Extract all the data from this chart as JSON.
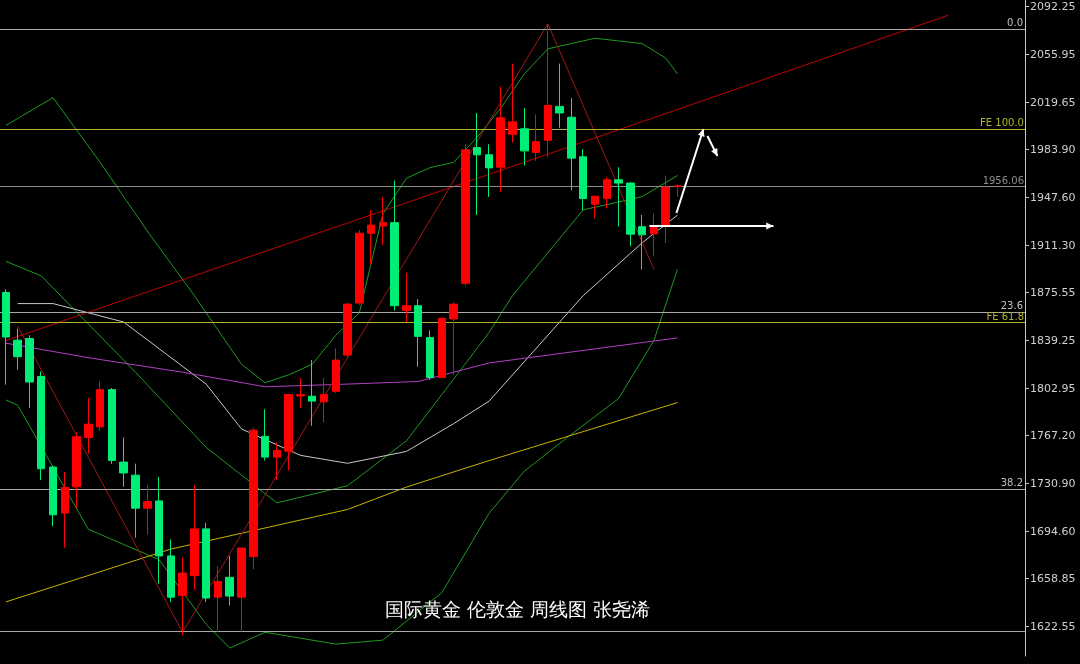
{
  "chart_data": {
    "type": "candlestick",
    "title": "国际黄金 伦敦金 周线图 张尧浠",
    "categories": [
      null,
      null,
      null,
      null,
      null,
      null,
      null,
      null,
      null,
      null,
      null,
      null,
      null,
      null,
      null,
      null,
      null,
      null,
      null,
      null,
      null,
      null,
      null,
      null,
      null,
      null,
      null,
      null,
      null,
      null,
      null,
      null,
      null,
      null,
      null,
      null,
      null,
      null,
      null,
      null,
      null,
      null,
      null,
      null,
      null,
      null,
      null,
      null,
      null,
      null,
      null,
      null,
      null,
      null,
      null,
      null,
      null,
      null,
      null,
      null,
      null,
      null,
      null,
      null,
      null,
      null,
      null,
      null,
      null,
      null,
      null,
      null,
      null,
      null,
      null,
      null,
      null,
      null,
      null,
      null,
      null,
      null,
      null,
      null,
      null,
      null,
      null
    ],
    "ohlc": [
      [
        1875.4,
        1877.9,
        1805.6,
        1841.7
      ],
      [
        1839.3,
        1848,
        1816.8,
        1826.8
      ],
      [
        1840.5,
        1843,
        1788,
        1807.6
      ],
      [
        1811.8,
        1815.6,
        1733.2,
        1741.9
      ],
      [
        1743.2,
        1744.4,
        1698.3,
        1707
      ],
      [
        1708.3,
        1739.4,
        1682.1,
        1727.7
      ],
      [
        1728.2,
        1769.4,
        1712,
        1766.1
      ],
      [
        1765.6,
        1795.6,
        1753.2,
        1775.6
      ],
      [
        1773.6,
        1808.1,
        1770.6,
        1801.8
      ],
      [
        1801.8,
        1803,
        1745.7,
        1748.2
      ],
      [
        1746.9,
        1765.6,
        1728.2,
        1738.7
      ],
      [
        1737,
        1745.7,
        1689.6,
        1712
      ],
      [
        1712,
        1729.5,
        1692,
        1717
      ],
      [
        1717.5,
        1735.7,
        1654.6,
        1675.8
      ],
      [
        1675.8,
        1688.3,
        1640.9,
        1644.6
      ],
      [
        1645.9,
        1674.6,
        1615.9,
        1662.8
      ],
      [
        1660.9,
        1729.5,
        1650,
        1696.3
      ],
      [
        1696.3,
        1700.8,
        1640.9,
        1643.9
      ],
      [
        1644.6,
        1668.3,
        1618.4,
        1656.4
      ],
      [
        1659.6,
        1675.8,
        1638.4,
        1645.4
      ],
      [
        1644.6,
        1682,
        1618.4,
        1681.8
      ],
      [
        1675.3,
        1773.1,
        1665.8,
        1771.1
      ],
      [
        1766.4,
        1786.9,
        1748.2,
        1750.7
      ],
      [
        1750.7,
        1761.9,
        1733.2,
        1755.7
      ],
      [
        1755.2,
        1798.1,
        1740.7,
        1798.1
      ],
      [
        1797,
        1810.6,
        1788.1,
        1798
      ],
      [
        1796.8,
        1824.3,
        1774.4,
        1793.1
      ],
      [
        1792.6,
        1810.6,
        1777,
        1798.1
      ],
      [
        1800.5,
        1833,
        1799.3,
        1824.2
      ],
      [
        1828,
        1867.9,
        1826.7,
        1866.6
      ],
      [
        1867.4,
        1922.8,
        1866,
        1920.3
      ],
      [
        1920.3,
        1937.7,
        1896.6,
        1926.5
      ],
      [
        1925.8,
        1947.7,
        1911.5,
        1928.3
      ],
      [
        1928.3,
        1960.2,
        1861.7,
        1865.4
      ],
      [
        1861.7,
        1890.3,
        1852.9,
        1865.4
      ],
      [
        1865.4,
        1870.4,
        1819.2,
        1842.2
      ],
      [
        1841.2,
        1846.7,
        1809.3,
        1811
      ],
      [
        1811,
        1855.9,
        1810.5,
        1855.9
      ],
      [
        1855.4,
        1867.9,
        1812.9,
        1866.6
      ],
      [
        1882.4,
        1987.7,
        1880.5,
        1983.5
      ],
      [
        1985.2,
        2011.4,
        1934.1,
        1979.7
      ],
      [
        1979.7,
        1987.7,
        1947.8,
        1969.8
      ],
      [
        1970.3,
        2031.4,
        1951.5,
        2007.7
      ],
      [
        1995.2,
        2048.8,
        1989,
        2004.7
      ],
      [
        1999.4,
        2015.2,
        1971.5,
        1982.7
      ],
      [
        1981.5,
        2010.2,
        1975.2,
        1989.7
      ],
      [
        1990.7,
        2078.8,
        1977.7,
        2017.2
      ],
      [
        2016.4,
        2048.8,
        2000.2,
        2011.4
      ],
      [
        2008.2,
        2022.6,
        1952.8,
        1977.2
      ],
      [
        1978.2,
        1984,
        1937.8,
        1946.6
      ],
      [
        1942.3,
        1948.8,
        1931.6,
        1948.3
      ],
      [
        1946.6,
        1962.8,
        1939.1,
        1960.8
      ],
      [
        1960.8,
        1970.3,
        1925.3,
        1958.3
      ],
      [
        1958.3,
        1959,
        1910.4,
        1919.6
      ],
      [
        1925.3,
        1934.1,
        1892.9,
        1919.1
      ],
      [
        1919.8,
        1935.3,
        1902.9,
        1925.3
      ],
      [
        1925.8,
        1964,
        1912.9,
        1955.3
      ],
      [
        1956,
        1957.3,
        1947.8,
        1956.06
      ],
      null,
      null,
      null,
      null,
      null,
      null,
      null,
      null,
      null,
      null,
      null,
      null,
      null,
      null,
      null,
      null,
      null,
      null,
      null,
      null,
      null,
      null,
      null,
      null,
      null,
      null,
      null,
      null,
      null
    ],
    "colors": [
      "#00ee76",
      "#00ee76",
      "#00ee76",
      "#00ee76",
      "#00ee76",
      "#ff0000",
      "#ff0000",
      "#ff0000",
      "#ff0000",
      "#00ee76",
      "#00ee76",
      "#00ee76",
      "#ff0000",
      "#00ee76",
      "#00ee76",
      "#ff0000",
      "#ff0000",
      "#00ee76",
      "#ff0000",
      "#00ee76",
      "#ff0000",
      "#ff0000",
      "#00ee76",
      "#ff0000",
      "#ff0000",
      "#ff0000",
      "#00ee76",
      "#ff0000",
      "#ff0000",
      "#ff0000",
      "#ff0000",
      "#ff0000",
      "#ff0000",
      "#00ee76",
      "#ff0000",
      "#00ee76",
      "#00ee76",
      "#ff0000",
      "#ff0000",
      "#ff0000",
      "#00ee76",
      "#00ee76",
      "#ff0000",
      "#ff0000",
      "#00ee76",
      "#ff0000",
      "#ff0000",
      "#00ee76",
      "#00ee76",
      "#00ee76",
      "#ff0000",
      "#ff0000",
      "#00ee76",
      "#00ee76",
      "#00ee76",
      "#ff0000",
      "#ff0000",
      "#ff0000",
      null,
      null,
      null,
      null,
      null,
      null,
      null,
      null,
      null,
      null,
      null,
      null,
      null,
      null,
      null,
      null,
      null,
      null,
      null,
      null,
      null,
      null,
      null,
      null,
      null,
      null,
      null,
      null,
      null
    ],
    "series": [
      {
        "type": "line",
        "color": "#1f9a1f",
        "values": [
          2002,
          null,
          null,
          null,
          2023,
          null,
          null,
          null,
          1974,
          null,
          null,
          null,
          1922,
          null,
          null,
          null,
          1873,
          null,
          null,
          null,
          1821,
          null,
          1807,
          null,
          1813,
          null,
          1821,
          null,
          1843,
          null,
          1860,
          null,
          1935,
          null,
          1962,
          null,
          1970,
          null,
          1974,
          null,
          1993,
          null,
          2015,
          null,
          2041,
          null,
          2060,
          null,
          2064,
          null,
          2068,
          null,
          2066,
          null,
          2064,
          null,
          2053,
          2041,
          null,
          null,
          null,
          null,
          null,
          null,
          null,
          null,
          null,
          null,
          null,
          null,
          null,
          null,
          null,
          null,
          null,
          null,
          null,
          null,
          null,
          null,
          null,
          null,
          null,
          null,
          null,
          null,
          null
        ]
      },
      {
        "type": "line",
        "color": "#1f9a1f",
        "values": [
          1899,
          null,
          null,
          1888,
          null,
          null,
          null,
          null,
          null,
          null,
          null,
          1815,
          null,
          null,
          null,
          null,
          null,
          1758,
          null,
          null,
          null,
          null,
          null,
          1716,
          null,
          null,
          null,
          null,
          null,
          1729,
          null,
          null,
          null,
          null,
          1763,
          null,
          null,
          1798,
          null,
          null,
          null,
          1845,
          null,
          1873,
          null,
          null,
          null,
          null,
          null,
          1938,
          null,
          null,
          null,
          null,
          1948,
          null,
          null,
          1964,
          null,
          null,
          null,
          null,
          null,
          null,
          null,
          null,
          null,
          null,
          null,
          null,
          null,
          null,
          null,
          null,
          null,
          null,
          null,
          null,
          null,
          null,
          null,
          null,
          null,
          null,
          null,
          null,
          null
        ]
      },
      {
        "type": "line",
        "color": "#1f9a1f",
        "values": [
          1794,
          1790,
          null,
          null,
          null,
          null,
          null,
          1696,
          null,
          null,
          null,
          null,
          null,
          1673,
          null,
          null,
          null,
          1624,
          null,
          1606,
          null,
          null,
          1618,
          null,
          null,
          null,
          null,
          null,
          1609,
          null,
          null,
          null,
          1612,
          null,
          null,
          null,
          null,
          1648,
          null,
          null,
          null,
          1708,
          null,
          null,
          1740,
          null,
          null,
          null,
          1768,
          null,
          null,
          null,
          1795,
          null,
          null,
          1839,
          null,
          1893,
          null,
          null,
          null,
          null,
          null,
          null,
          null,
          null,
          null,
          null,
          null,
          null,
          null,
          null,
          null,
          null,
          null,
          null,
          null,
          null,
          null,
          null,
          null,
          null,
          null,
          null,
          null,
          null,
          null
        ]
      },
      {
        "type": "line",
        "color": "#c8c8c8",
        "values": [
          null,
          1867,
          null,
          null,
          1867,
          null,
          null,
          null,
          null,
          null,
          1853,
          null,
          null,
          null,
          null,
          null,
          null,
          1806,
          null,
          null,
          1772,
          null,
          null,
          null,
          null,
          1752,
          null,
          null,
          null,
          1746,
          null,
          null,
          null,
          null,
          1755,
          null,
          null,
          null,
          1776,
          null,
          null,
          1793,
          null,
          null,
          null,
          null,
          null,
          null,
          null,
          1873,
          null,
          null,
          null,
          null,
          1913,
          null,
          null,
          1934,
          null,
          null,
          null,
          null,
          null,
          null,
          null,
          null,
          null,
          null,
          null,
          null,
          null,
          null,
          null,
          null,
          null,
          null,
          null,
          null,
          null,
          null,
          null,
          null,
          null,
          null,
          null,
          null,
          null
        ]
      },
      {
        "type": "line",
        "color": "#b040c0",
        "values": [
          1837,
          null,
          null,
          null,
          null,
          null,
          null,
          1826,
          null,
          null,
          null,
          null,
          null,
          null,
          null,
          1815,
          null,
          null,
          null,
          null,
          null,
          null,
          1804,
          null,
          null,
          null,
          null,
          null,
          null,
          1806,
          null,
          null,
          null,
          null,
          null,
          1808,
          null,
          null,
          null,
          null,
          null,
          1822,
          null,
          null,
          null,
          null,
          null,
          null,
          null,
          null,
          null,
          null,
          null,
          null,
          null,
          null,
          null,
          1841,
          null,
          null,
          null,
          null,
          null,
          null,
          null,
          null,
          null,
          null,
          null,
          null,
          null,
          null,
          null,
          null,
          null,
          null,
          null,
          null,
          null,
          null,
          null,
          null,
          null,
          null,
          null,
          null,
          null
        ]
      },
      {
        "type": "line",
        "color": "#c8b400",
        "values": [
          1641,
          null,
          null,
          null,
          null,
          null,
          null,
          null,
          null,
          null,
          null,
          null,
          null,
          null,
          1681,
          null,
          null,
          null,
          null,
          null,
          null,
          null,
          null,
          null,
          null,
          null,
          null,
          null,
          null,
          1711,
          null,
          null,
          null,
          null,
          1728,
          null,
          null,
          null,
          null,
          null,
          null,
          1748,
          null,
          null,
          null,
          null,
          null,
          null,
          null,
          null,
          null,
          null,
          null,
          null,
          null,
          null,
          null,
          1792,
          null,
          null,
          null,
          null,
          null,
          null,
          null,
          null,
          null,
          null,
          null,
          null,
          null,
          null,
          null,
          null,
          null,
          null,
          null,
          null,
          null,
          null,
          null,
          null,
          null,
          null,
          null,
          null,
          null
        ]
      },
      {
        "type": "line",
        "color": "#c00000",
        "values": [
          1839,
          null,
          null,
          null,
          null,
          null,
          null,
          null,
          null,
          null,
          null,
          null,
          null,
          null,
          null,
          null,
          null,
          null,
          null,
          null,
          null,
          null,
          null,
          null,
          null,
          null,
          null,
          null,
          null,
          null,
          null,
          null,
          null,
          null,
          null,
          null,
          null,
          null,
          null,
          null,
          null,
          null,
          null,
          null,
          null,
          null,
          null,
          null,
          null,
          null,
          null,
          null,
          null,
          null,
          null,
          null,
          null,
          2014,
          null,
          null,
          null,
          null,
          null,
          null,
          null,
          null,
          null,
          null,
          null,
          null,
          null,
          null,
          null,
          null,
          null,
          null,
          null,
          null,
          null,
          null,
          2085.5,
          null,
          null,
          null,
          null,
          null,
          null
        ]
      },
      {
        "type": "line",
        "color": "#a01818",
        "values": [
          null,
          1850,
          null,
          null,
          null,
          null,
          null,
          null,
          null,
          null,
          null,
          null,
          null,
          null,
          null,
          1618,
          null,
          null,
          null,
          null,
          null,
          null,
          null,
          null,
          null,
          null,
          null,
          null,
          null,
          null,
          null,
          null,
          null,
          null,
          null,
          null,
          null,
          null,
          null,
          null,
          null,
          null,
          null,
          null,
          null,
          null,
          2079,
          null,
          null,
          null,
          null,
          null,
          null,
          null,
          null,
          1893,
          null,
          null,
          null,
          null,
          null,
          null,
          null,
          null,
          null,
          null,
          null,
          null,
          null,
          null,
          null,
          null,
          null,
          null,
          null,
          null,
          null,
          null,
          null,
          null,
          null,
          null,
          null,
          null,
          null,
          null,
          null
        ]
      }
    ],
    "marker": "none",
    "line_style": "solid",
    "ylim": [
      1600,
      2097
    ],
    "yticks": [
      2092.25,
      2055.95,
      2019.65,
      {
        "value": 1983.9,
        "label": "1983.90"
      },
      {
        "value": 1947.6,
        "label": "1947.60"
      },
      {
        "value": 1911.3,
        "label": "1911.30"
      },
      1875.55,
      1839.25,
      1802.95,
      {
        "value": 1767.2,
        "label": "1767.20"
      },
      {
        "value": 1730.9,
        "label": "1730.90"
      },
      {
        "value": 1694.6,
        "label": "1694.60"
      },
      1658.85,
      1622.55
    ],
    "ref_lines": [
      {
        "axis": "y",
        "value": 2075,
        "label": null,
        "color": "#a8a8a8"
      },
      {
        "axis": "y",
        "value": 1999.4,
        "label": "FE 100.0",
        "color": "#b4b432"
      },
      {
        "axis": "y",
        "value": 1956.06,
        "label": "1956.06",
        "color": "#8c8c8c"
      },
      {
        "axis": "y",
        "value": 1860.2,
        "label": null,
        "color": "#a8a8a8"
      },
      {
        "axis": "y",
        "value": 1852.7,
        "label": "FE 61.8",
        "color": "#b4b432"
      },
      {
        "axis": "y",
        "value": 1726.2,
        "label": null,
        "color": "#a8a8a8"
      },
      {
        "axis": "y",
        "value": 1618.4,
        "label": null,
        "color": "#a8a8a8"
      }
    ],
    "annotations": [
      {
        "text": "0.0",
        "y": 2075
      },
      {
        "text": "23.6",
        "y": 1860.2
      },
      {
        "text": "38.2",
        "y": 1726.2
      }
    ]
  }
}
